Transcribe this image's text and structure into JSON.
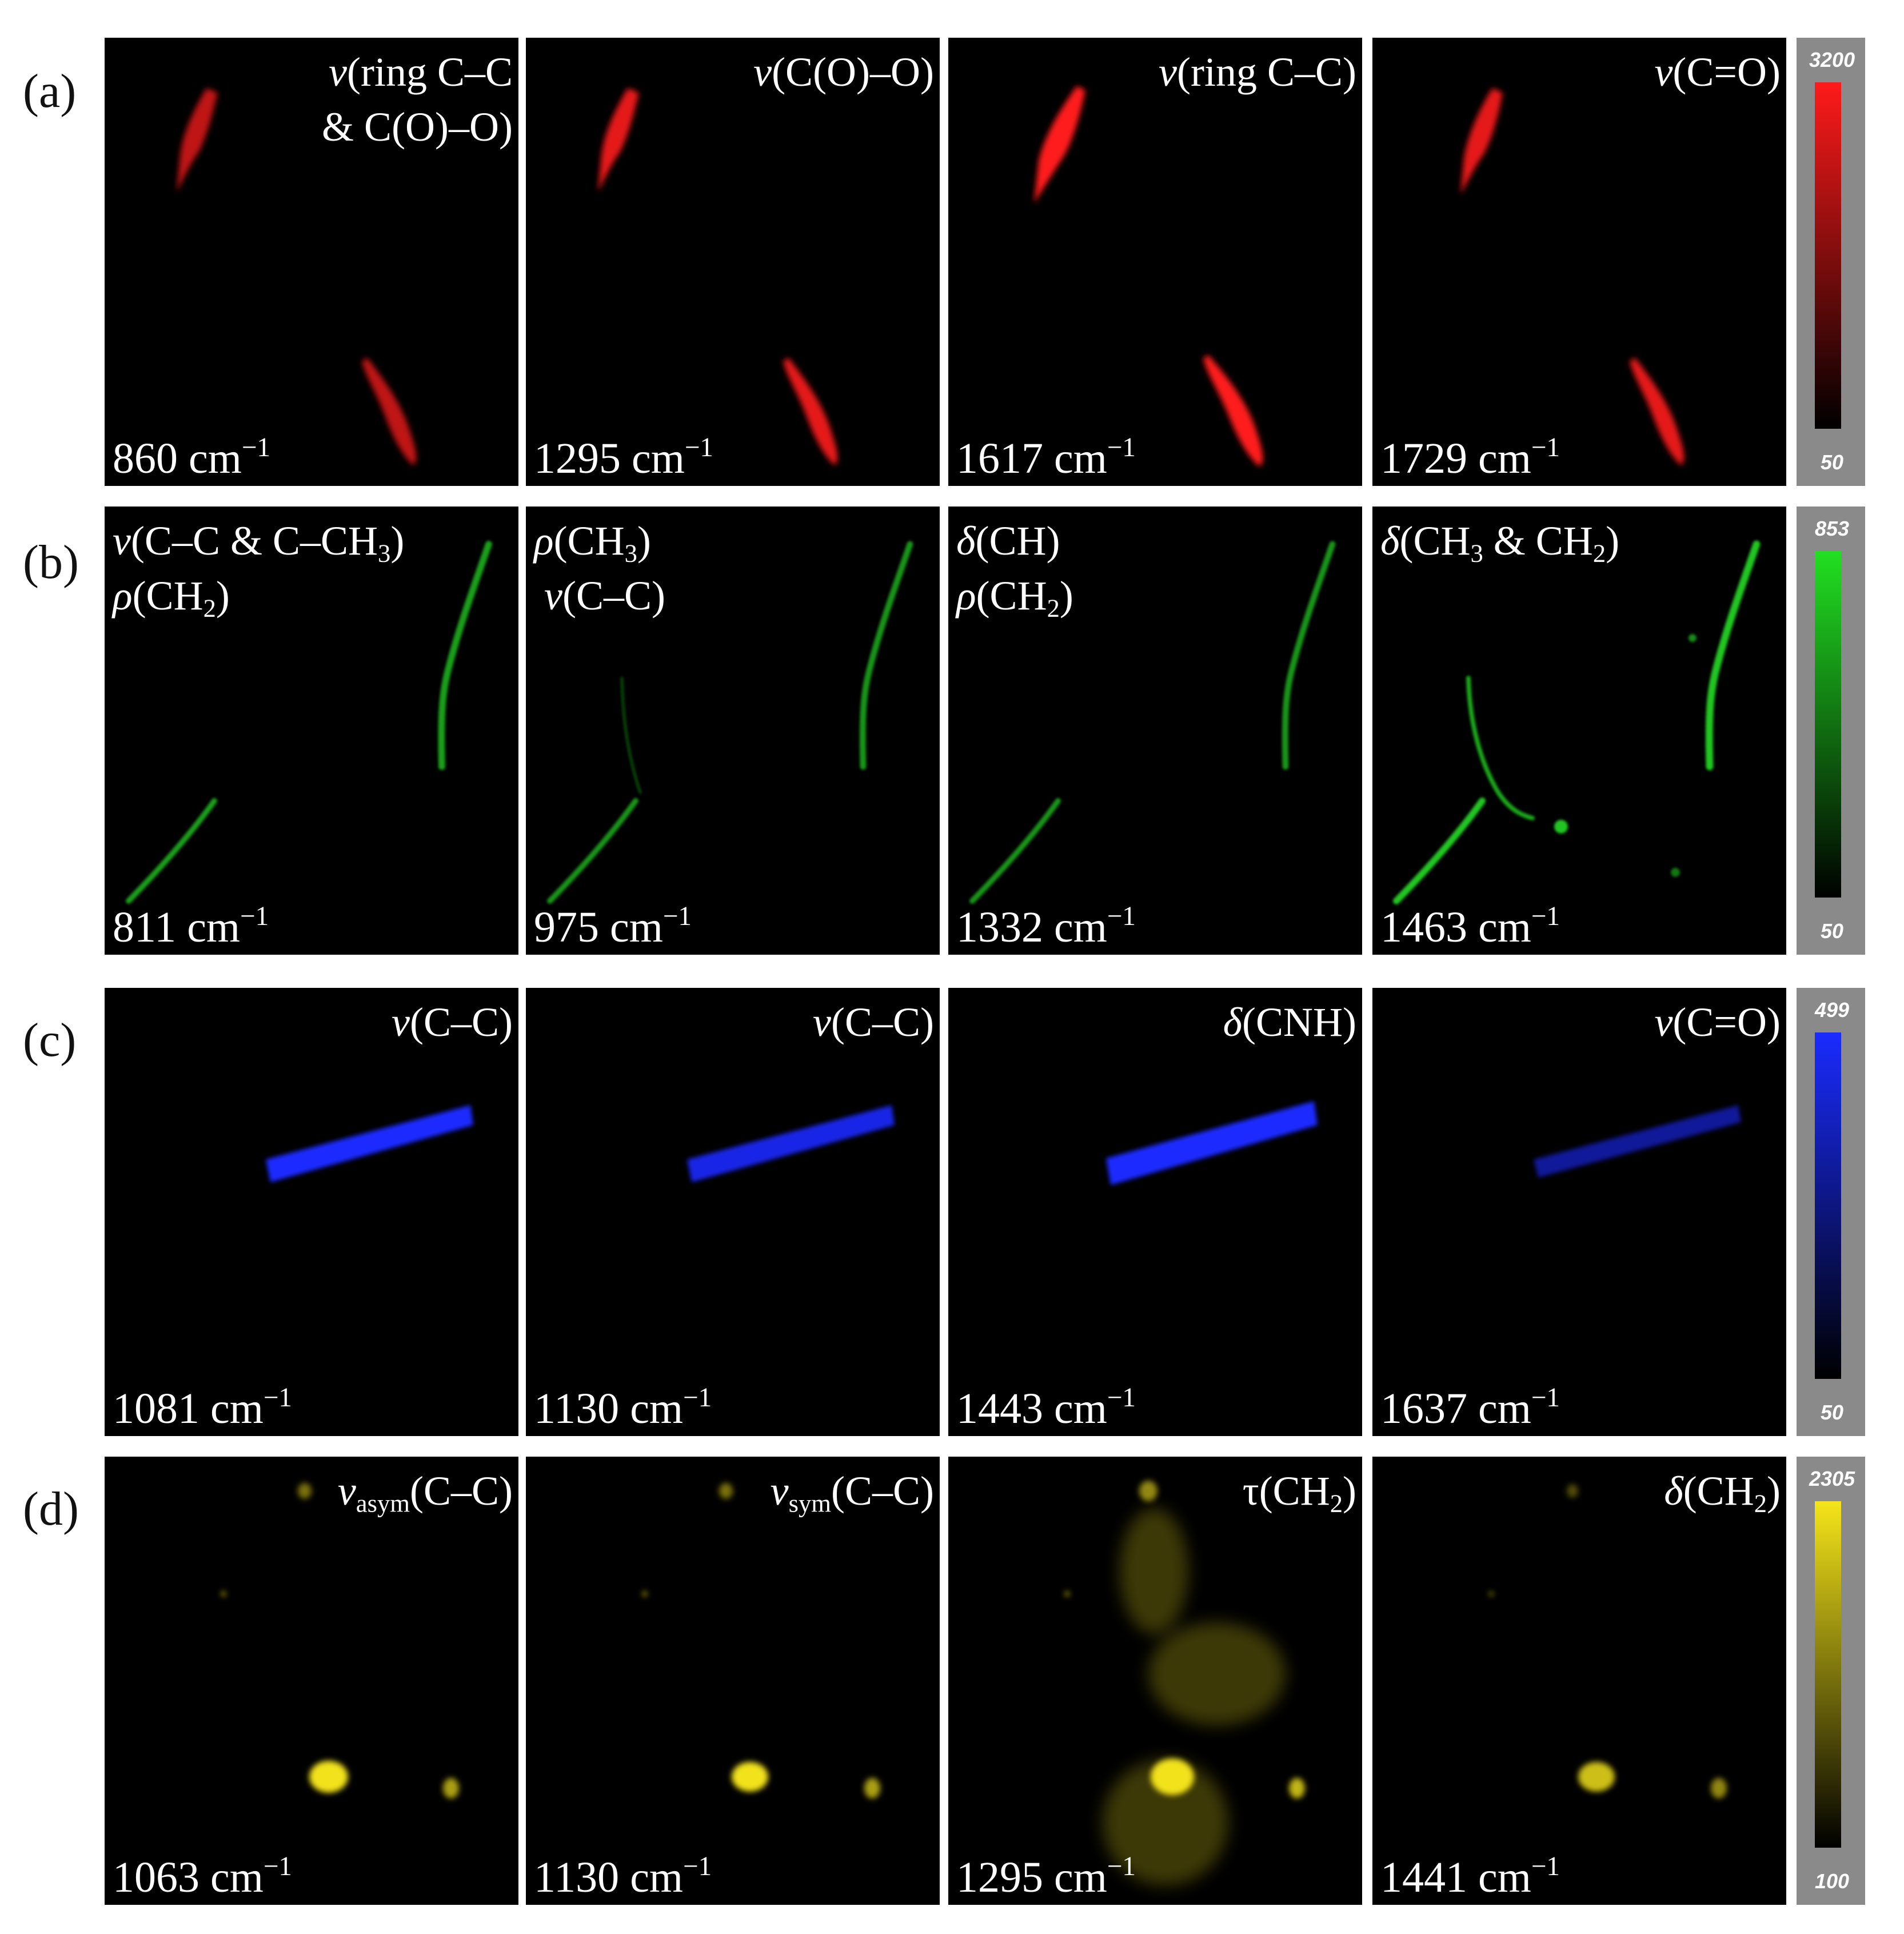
{
  "rows": [
    {
      "label": "(a)",
      "color": "#ff1a1a",
      "panels": [
        {
          "mode_html": "<i>v</i>(ring C–C\n&amp; C(O)–O)",
          "mode_text": "v(ring C–C & C(O)–O)",
          "wavenumber": "860"
        },
        {
          "mode_html": "<i>v</i>(C(O)–O)",
          "mode_text": "v(C(O)–O)",
          "wavenumber": "1295"
        },
        {
          "mode_html": "<i>v</i>(ring C–C)",
          "mode_text": "v(ring C–C)",
          "wavenumber": "1617"
        },
        {
          "mode_html": "<i>v</i>(C=O)",
          "mode_text": "v(C=O)",
          "wavenumber": "1729"
        }
      ],
      "colorbar": {
        "max": "3200",
        "min": "50"
      }
    },
    {
      "label": "(b)",
      "color": "#22c422",
      "panels": [
        {
          "mode_html": "<i>v</i>(C–C &amp; C–CH<sub>3</sub>)\n<i>ρ</i>(CH<sub>2</sub>)",
          "mode_text": "v(C–C & C–CH3) ρ(CH2)",
          "wavenumber": "811"
        },
        {
          "mode_html": "<i>ρ</i>(CH<sub>3</sub>)\n <i>v</i>(C–C)",
          "mode_text": "ρ(CH3) v(C–C)",
          "wavenumber": "975"
        },
        {
          "mode_html": "<i>δ</i>(CH)\n<i>ρ</i>(CH<sub>2</sub>)",
          "mode_text": "δ(CH) ρ(CH2)",
          "wavenumber": "1332"
        },
        {
          "mode_html": "<i>δ</i>(CH<sub>3</sub> &amp; CH<sub>2</sub>)",
          "mode_text": "δ(CH3 & CH2)",
          "wavenumber": "1463"
        }
      ],
      "colorbar": {
        "max": "853",
        "min": "50"
      }
    },
    {
      "label": "(c)",
      "color": "#1a2cff",
      "panels": [
        {
          "mode_html": "<i>v</i>(C–C)",
          "mode_text": "v(C–C)",
          "wavenumber": "1081"
        },
        {
          "mode_html": "<i>v</i>(C–C)",
          "mode_text": "v(C–C)",
          "wavenumber": "1130"
        },
        {
          "mode_html": "<i>δ</i>(CNH)",
          "mode_text": "δ(CNH)",
          "wavenumber": "1443"
        },
        {
          "mode_html": "<i>v</i>(C=O)",
          "mode_text": "v(C=O)",
          "wavenumber": "1637"
        }
      ],
      "colorbar": {
        "max": "499",
        "min": "50"
      }
    },
    {
      "label": "(d)",
      "color": "#f2e21a",
      "panels": [
        {
          "mode_html": "<i>v</i><sub>asym</sub>(C–C)",
          "mode_text": "vasym(C–C)",
          "wavenumber": "1063"
        },
        {
          "mode_html": "<i>v</i><sub>sym</sub>(C–C)",
          "mode_text": "vsym(C–C)",
          "wavenumber": "1130"
        },
        {
          "mode_html": "τ(CH<sub>2</sub>)",
          "mode_text": "τ(CH2)",
          "wavenumber": "1295"
        },
        {
          "mode_html": "<i>δ</i>(CH<sub>2</sub>)",
          "mode_text": "δ(CH2)",
          "wavenumber": "1441"
        }
      ],
      "colorbar": {
        "max": "2305",
        "min": "100"
      }
    }
  ],
  "unit": "cm",
  "unit_exponent": "−1"
}
